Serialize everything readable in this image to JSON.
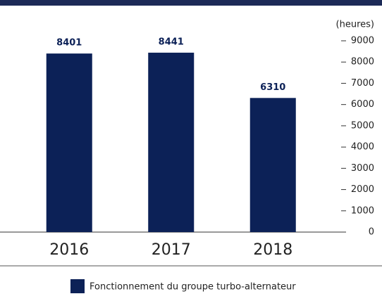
{
  "chart_data": {
    "type": "bar",
    "y_label": "(heures)",
    "categories": [
      "2016",
      "2017",
      "2018"
    ],
    "series": [
      {
        "name": "Fonctionnement du groupe turbo-alternateur",
        "color": "#0c2157",
        "values": [
          8401,
          8441,
          6310
        ]
      }
    ],
    "ylim": [
      0,
      9000
    ],
    "yticks": [
      0,
      1000,
      2000,
      3000,
      4000,
      5000,
      6000,
      7000,
      8000,
      9000
    ],
    "legend": "bottom"
  }
}
